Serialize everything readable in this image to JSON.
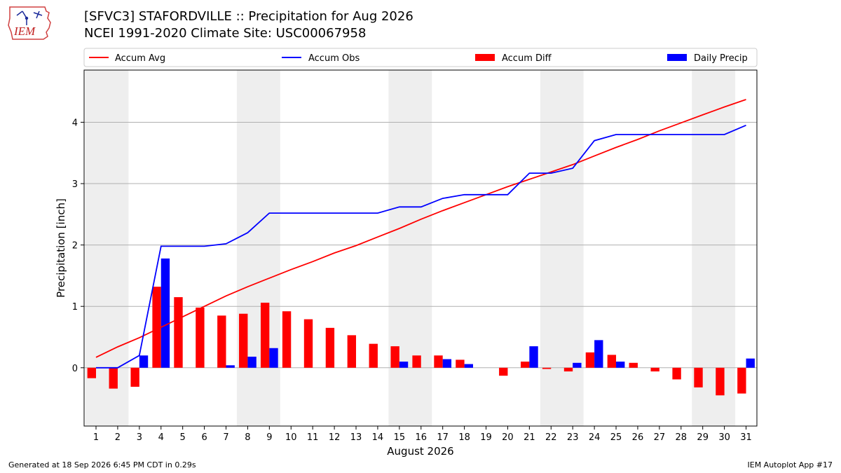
{
  "header": {
    "title_line1": "[SFVC3] STAFORDVILLE :: Precipitation for Aug 2026",
    "title_line2": "NCEI 1991-2020 Climate Site: USC00067958",
    "logo_text": "IEM"
  },
  "footer": {
    "generated": "Generated at 18 Sep 2026 6:45 PM CDT in 0.29s",
    "app": "IEM Autoplot App #17"
  },
  "colors": {
    "avg": "#ff0000",
    "obs": "#0000ff",
    "diff": "#ff0000",
    "daily": "#0000ff",
    "weekend_shade": "#eeeeee",
    "grid": "#b0b0b0"
  },
  "chart_data": {
    "type": "bar",
    "xlabel": "August 2026",
    "ylabel": "Precipitation [inch]",
    "ylim": [
      -0.95,
      4.85
    ],
    "yticks": [
      0,
      1,
      2,
      3,
      4
    ],
    "grid": "horizontal",
    "legend_position": "top",
    "x": [
      1,
      2,
      3,
      4,
      5,
      6,
      7,
      8,
      9,
      10,
      11,
      12,
      13,
      14,
      15,
      16,
      17,
      18,
      19,
      20,
      21,
      22,
      23,
      24,
      25,
      26,
      27,
      28,
      29,
      30,
      31
    ],
    "weekend_shading": [
      [
        1,
        2
      ],
      [
        8,
        9
      ],
      [
        15,
        16
      ],
      [
        22,
        23
      ],
      [
        29,
        30
      ]
    ],
    "series": [
      {
        "name": "Accum Avg",
        "kind": "line",
        "values": [
          0.17,
          0.34,
          0.49,
          0.66,
          0.83,
          1.0,
          1.17,
          1.32,
          1.46,
          1.6,
          1.73,
          1.87,
          1.99,
          2.13,
          2.27,
          2.42,
          2.56,
          2.69,
          2.82,
          2.95,
          3.07,
          3.19,
          3.31,
          3.45,
          3.59,
          3.72,
          3.86,
          3.99,
          4.12,
          4.25,
          4.37
        ]
      },
      {
        "name": "Accum Obs",
        "kind": "line",
        "values": [
          0.0,
          0.0,
          0.2,
          1.98,
          1.98,
          1.98,
          2.02,
          2.2,
          2.52,
          2.52,
          2.52,
          2.52,
          2.52,
          2.52,
          2.62,
          2.62,
          2.76,
          2.82,
          2.82,
          2.82,
          3.17,
          3.17,
          3.25,
          3.7,
          3.8,
          3.8,
          3.8,
          3.8,
          3.8,
          3.8,
          3.95
        ]
      },
      {
        "name": "Accum Diff",
        "kind": "bar",
        "values": [
          -0.17,
          -0.34,
          -0.31,
          1.32,
          1.15,
          0.98,
          0.85,
          0.88,
          1.06,
          0.92,
          0.79,
          0.65,
          0.53,
          0.39,
          0.35,
          0.2,
          0.2,
          0.13,
          0.0,
          -0.13,
          0.1,
          -0.02,
          -0.06,
          0.25,
          0.21,
          0.08,
          -0.06,
          -0.19,
          -0.32,
          -0.45,
          -0.42
        ]
      },
      {
        "name": "Daily Precip",
        "kind": "bar",
        "values": [
          0.0,
          0.0,
          0.2,
          1.78,
          0.0,
          0.0,
          0.04,
          0.18,
          0.32,
          0.0,
          0.0,
          0.0,
          0.0,
          0.0,
          0.1,
          0.0,
          0.14,
          0.06,
          0.0,
          0.0,
          0.35,
          0.0,
          0.08,
          0.45,
          0.1,
          0.0,
          0.0,
          0.0,
          0.0,
          0.0,
          0.15
        ]
      }
    ]
  }
}
